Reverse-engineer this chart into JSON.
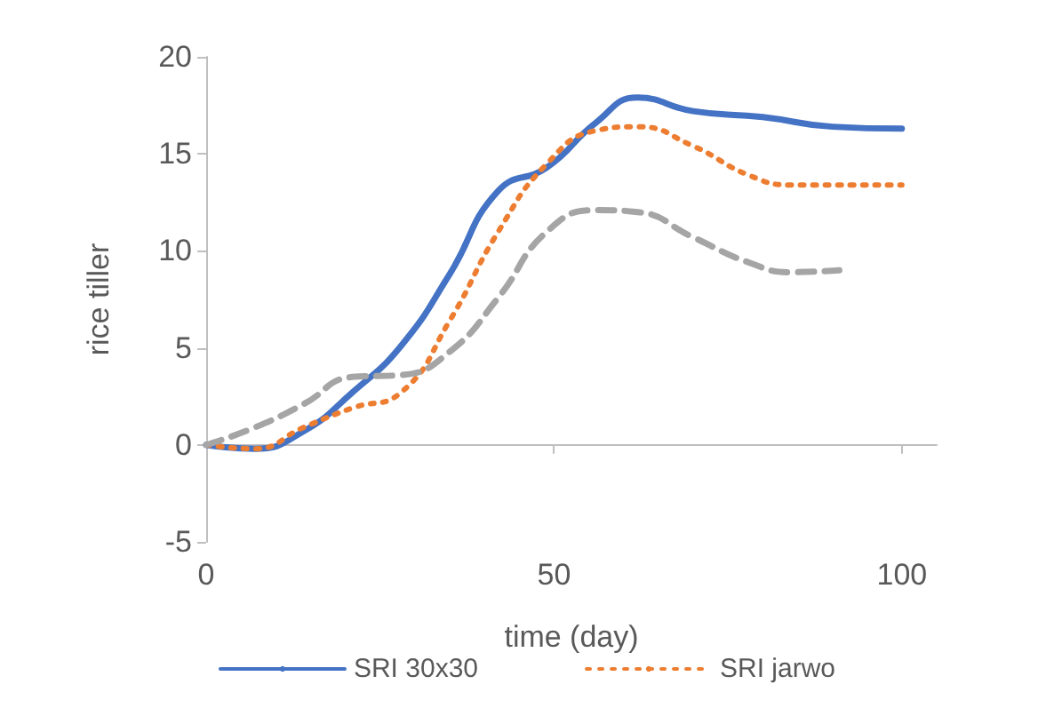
{
  "chart_data": {
    "type": "line",
    "xlabel": "time (day)",
    "ylabel": "rice tiller",
    "xlim": [
      0,
      105
    ],
    "xticks": [
      0,
      50,
      100
    ],
    "ylim": [
      -5,
      20
    ],
    "yticks": [
      -5,
      0,
      5,
      10,
      15,
      20
    ],
    "legend": "bottom",
    "marker": "none",
    "series": [
      {
        "name": "SRI 30x30",
        "color": "#4472c4",
        "line_style": "solid",
        "x": [
          0,
          7,
          14,
          21,
          28,
          35,
          42,
          49,
          56,
          62,
          70,
          80,
          90,
          100
        ],
        "values": [
          0,
          -0.2,
          0.7,
          2.7,
          5.1,
          8.8,
          13.1,
          14.3,
          16.6,
          17.9,
          17.2,
          16.9,
          16.4,
          16.3
        ]
      },
      {
        "name": "SRI jarwo",
        "color": "#ed7d31",
        "line_style": "dotted",
        "x": [
          0,
          7,
          14,
          21,
          28,
          35,
          42,
          49,
          56,
          62,
          70,
          78,
          84,
          100
        ],
        "values": [
          0,
          -0.2,
          0.9,
          1.9,
          2.7,
          6.4,
          11,
          14.5,
          16.2,
          16.4,
          15.4,
          13.9,
          13.4,
          13.4
        ]
      },
      {
        "color": "#a5a5a5",
        "line_style": "dashed",
        "x": [
          0,
          7,
          14,
          21,
          28,
          35,
          42,
          49,
          56,
          62,
          70,
          78,
          84,
          91
        ],
        "values": [
          0,
          0.9,
          2.1,
          3.5,
          3.6,
          4.8,
          7.6,
          11,
          12.1,
          12,
          10.7,
          9.4,
          8.9,
          9.0
        ]
      }
    ]
  }
}
